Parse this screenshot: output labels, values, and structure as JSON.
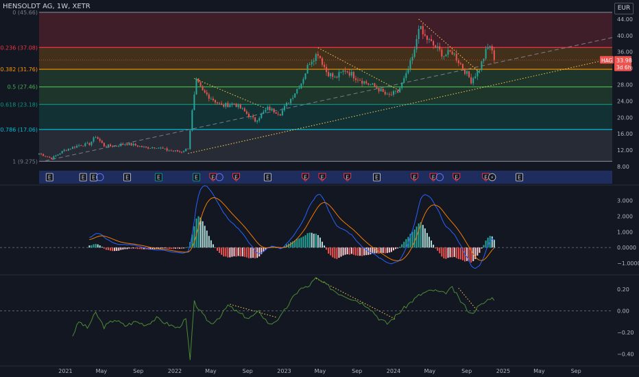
{
  "chart_title": "HENSOLDT AG, 1W, XETR",
  "currency": "EUR",
  "price_tag": {
    "symbol": "HAG",
    "price": "33.98",
    "time": "3d 6h",
    "value": 33.98
  },
  "colors": {
    "bg": "#131722",
    "up": "#26a69a",
    "down": "#ef5350",
    "grid": "#2a2e39",
    "text": "#b2b5be",
    "macd": "#2962ff",
    "signal": "#f57c00",
    "osc": "#4c8c34",
    "trend": "#f5c24a",
    "dashed": "#787b86",
    "hist_up_strong": "#26a69a",
    "hist_up_weak": "#b2dfdb",
    "hist_down_strong": "#ef5350",
    "hist_down_weak": "#ffcdd2",
    "event_bar": "#1f2c5e"
  },
  "chart_data": [
    {
      "id": "price",
      "type": "candlestick",
      "ylim": [
        7.5,
        45.66
      ],
      "y_ticks": [
        "44.00",
        "40.00",
        "36.00",
        "32.00",
        "28.00",
        "24.00",
        "20.00",
        "16.00",
        "12.00",
        "8.00"
      ],
      "fib_levels": [
        {
          "label": "0 (45.66)",
          "value": 45.66,
          "color": "#787b86"
        },
        {
          "label": "0.236 (37.08)",
          "value": 37.08,
          "color": "#f23645"
        },
        {
          "label": "0.382 (31.76)",
          "value": 31.76,
          "color": "#ff9800"
        },
        {
          "label": "0.5 (27.46)",
          "value": 27.46,
          "color": "#4caf50"
        },
        {
          "label": "0.618 (23.18)",
          "value": 23.18,
          "color": "#089981"
        },
        {
          "label": "0.786 (17.06)",
          "value": 17.06,
          "color": "#00bcd4"
        },
        {
          "label": "1 (9.275)",
          "value": 9.275,
          "color": "#787b86"
        }
      ],
      "fib_zones": [
        {
          "from": 45.66,
          "to": 37.08,
          "color": "#f23645"
        },
        {
          "from": 37.08,
          "to": 31.76,
          "color": "#ff9800"
        },
        {
          "from": 31.76,
          "to": 27.46,
          "color": "#4caf50"
        },
        {
          "from": 27.46,
          "to": 23.18,
          "color": "#4caf50"
        },
        {
          "from": 23.18,
          "to": 17.06,
          "color": "#089981"
        },
        {
          "from": 17.06,
          "to": 9.275,
          "color": "#787b86"
        }
      ],
      "x_labels": [
        "2021",
        "May",
        "Sep",
        "2022",
        "May",
        "Sep",
        "2023",
        "May",
        "Sep",
        "2024",
        "May",
        "Sep",
        "2025",
        "May",
        "Sep"
      ],
      "close_knots": [
        [
          "2020-10-05",
          11.2
        ],
        [
          "2020-11-16",
          10.0
        ],
        [
          "2020-12-28",
          12.0
        ],
        [
          "2021-02-15",
          13.2
        ],
        [
          "2021-03-22",
          13.5
        ],
        [
          "2021-04-12",
          15.4
        ],
        [
          "2021-05-10",
          13.1
        ],
        [
          "2021-06-14",
          13.0
        ],
        [
          "2021-07-19",
          13.6
        ],
        [
          "2021-08-23",
          13.2
        ],
        [
          "2021-09-27",
          12.6
        ],
        [
          "2021-11-01",
          12.8
        ],
        [
          "2021-12-06",
          12.0
        ],
        [
          "2022-01-24",
          11.6
        ],
        [
          "2022-02-14",
          12.5
        ],
        [
          "2022-02-28",
          21.5
        ],
        [
          "2022-03-14",
          28.8
        ],
        [
          "2022-04-04",
          26.3
        ],
        [
          "2022-05-02",
          24.8
        ],
        [
          "2022-06-06",
          22.8
        ],
        [
          "2022-07-18",
          23.4
        ],
        [
          "2022-08-15",
          21.8
        ],
        [
          "2022-09-26",
          19.2
        ],
        [
          "2022-11-07",
          22.2
        ],
        [
          "2022-12-19",
          21.0
        ],
        [
          "2023-01-23",
          24.6
        ],
        [
          "2023-02-27",
          28.5
        ],
        [
          "2023-03-27",
          33.6
        ],
        [
          "2023-04-24",
          35.8
        ],
        [
          "2023-05-22",
          31.2
        ],
        [
          "2023-06-19",
          29.6
        ],
        [
          "2023-07-24",
          31.6
        ],
        [
          "2023-08-28",
          29.8
        ],
        [
          "2023-10-02",
          28.4
        ],
        [
          "2023-11-06",
          27.3
        ],
        [
          "2023-12-11",
          25.2
        ],
        [
          "2024-01-15",
          26.2
        ],
        [
          "2024-02-12",
          30.2
        ],
        [
          "2024-03-11",
          36.0
        ],
        [
          "2024-03-25",
          42.5
        ],
        [
          "2024-04-08",
          40.2
        ],
        [
          "2024-05-13",
          37.6
        ],
        [
          "2024-06-17",
          35.2
        ],
        [
          "2024-07-15",
          36.0
        ],
        [
          "2024-08-12",
          33.0
        ],
        [
          "2024-09-16",
          29.0
        ],
        [
          "2024-10-14",
          32.0
        ],
        [
          "2024-11-04",
          36.0
        ],
        [
          "2024-11-18",
          37.6
        ],
        [
          "2024-12-02",
          33.98
        ]
      ]
    },
    {
      "id": "macd",
      "type": "macd",
      "ylim": [
        -1.7,
        3.9
      ],
      "y_ticks": [
        "3.000",
        "2.000",
        "1.000",
        "0.0000",
        "−1.0000"
      ],
      "y_tick_values": [
        3,
        2,
        1,
        0,
        -1
      ]
    },
    {
      "id": "oscillator",
      "type": "line",
      "ylim": [
        -0.5,
        0.32
      ],
      "y_ticks": [
        "0.20",
        "0.00",
        "−0.20",
        "−0.40"
      ],
      "y_tick_values": [
        0.2,
        0,
        -0.2,
        -0.4
      ],
      "knots": [
        [
          "2021-01-25",
          -0.23
        ],
        [
          "2021-02-15",
          -0.1
        ],
        [
          "2021-03-15",
          -0.16
        ],
        [
          "2021-04-12",
          -0.02
        ],
        [
          "2021-05-10",
          -0.15
        ],
        [
          "2021-06-14",
          -0.08
        ],
        [
          "2021-07-19",
          -0.14
        ],
        [
          "2021-08-23",
          -0.1
        ],
        [
          "2021-09-27",
          -0.13
        ],
        [
          "2021-11-01",
          -0.07
        ],
        [
          "2021-12-06",
          -0.12
        ],
        [
          "2022-01-10",
          -0.16
        ],
        [
          "2022-02-07",
          -0.08
        ],
        [
          "2022-02-21",
          -0.46
        ],
        [
          "2022-03-07",
          0.08
        ],
        [
          "2022-04-04",
          -0.04
        ],
        [
          "2022-05-02",
          -0.12
        ],
        [
          "2022-06-06",
          -0.04
        ],
        [
          "2022-06-27",
          0.05
        ],
        [
          "2022-08-01",
          -0.02
        ],
        [
          "2022-09-05",
          -0.07
        ],
        [
          "2022-10-10",
          -0.01
        ],
        [
          "2022-11-14",
          -0.13
        ],
        [
          "2022-12-19",
          -0.06
        ],
        [
          "2023-01-23",
          0.09
        ],
        [
          "2023-02-20",
          0.2
        ],
        [
          "2023-03-20",
          0.22
        ],
        [
          "2023-04-17",
          0.3
        ],
        [
          "2023-05-22",
          0.24
        ],
        [
          "2023-06-26",
          0.17
        ],
        [
          "2023-07-31",
          0.13
        ],
        [
          "2023-09-04",
          0.09
        ],
        [
          "2023-10-09",
          0.04
        ],
        [
          "2023-11-13",
          -0.07
        ],
        [
          "2023-12-11",
          -0.12
        ],
        [
          "2024-01-15",
          -0.03
        ],
        [
          "2024-02-19",
          0.06
        ],
        [
          "2024-03-25",
          0.14
        ],
        [
          "2024-04-15",
          0.17
        ],
        [
          "2024-05-13",
          0.19
        ],
        [
          "2024-06-17",
          0.16
        ],
        [
          "2024-07-15",
          0.21
        ],
        [
          "2024-08-12",
          0.09
        ],
        [
          "2024-09-16",
          -0.03
        ],
        [
          "2024-10-07",
          0.03
        ],
        [
          "2024-10-28",
          0.07
        ],
        [
          "2024-11-18",
          0.12
        ],
        [
          "2024-12-02",
          0.11
        ]
      ]
    }
  ],
  "trend_lines": [
    {
      "pane": "price",
      "style": "dashed",
      "from": [
        "2020-10-26",
        9.4
      ],
      "to": [
        "2025-12-31",
        39.5
      ]
    },
    {
      "pane": "price",
      "style": "dotted",
      "from": [
        "2022-02-14",
        11.2
      ],
      "to": [
        "2025-12-31",
        34.4
      ]
    },
    {
      "pane": "price",
      "style": "dotted",
      "from": [
        "2022-03-07",
        29.5
      ],
      "to": [
        "2022-11-07",
        22.0
      ]
    },
    {
      "pane": "price",
      "style": "dotted",
      "from": [
        "2023-04-24",
        37.0
      ],
      "to": [
        "2024-01-22",
        26.5
      ]
    },
    {
      "pane": "price",
      "style": "dotted",
      "from": [
        "2024-03-25",
        44.0
      ],
      "to": [
        "2024-10-14",
        31.0
      ]
    },
    {
      "pane": "oscillator",
      "style": "dotted",
      "from": [
        "2022-07-04",
        0.06
      ],
      "to": [
        "2022-12-05",
        -0.06
      ]
    },
    {
      "pane": "oscillator",
      "style": "dotted",
      "from": [
        "2023-04-17",
        0.3
      ],
      "to": [
        "2024-01-08",
        -0.08
      ]
    },
    {
      "pane": "oscillator",
      "style": "dotted",
      "from": [
        "2024-08-05",
        0.21
      ],
      "to": [
        "2024-10-07",
        0.0
      ]
    }
  ],
  "events": [
    {
      "date": "2020-11-09",
      "letter": "E",
      "kind": "earnings"
    },
    {
      "date": "2021-03-01",
      "letter": "E",
      "kind": "earnings"
    },
    {
      "date": "2021-04-05",
      "letter": "E",
      "kind": "earnings"
    },
    {
      "date": "2021-04-26",
      "letter": "",
      "kind": "other"
    },
    {
      "date": "2021-07-26",
      "letter": "E",
      "kind": "earnings"
    },
    {
      "date": "2021-11-08",
      "letter": "E",
      "kind": "dividend"
    },
    {
      "date": "2022-03-14",
      "letter": "E",
      "kind": "dividend"
    },
    {
      "date": "2022-05-09",
      "letter": "E",
      "kind": "earnings_miss"
    },
    {
      "date": "2022-05-30",
      "letter": "",
      "kind": "other"
    },
    {
      "date": "2022-07-25",
      "letter": "E",
      "kind": "earnings_miss"
    },
    {
      "date": "2022-11-07",
      "letter": "E",
      "kind": "earnings"
    },
    {
      "date": "2023-03-13",
      "letter": "E",
      "kind": "earnings_miss"
    },
    {
      "date": "2023-05-08",
      "letter": "E",
      "kind": "earnings_miss"
    },
    {
      "date": "2023-07-31",
      "letter": "E",
      "kind": "earnings_miss"
    },
    {
      "date": "2023-11-06",
      "letter": "E",
      "kind": "earnings"
    },
    {
      "date": "2024-03-11",
      "letter": "E",
      "kind": "earnings_miss"
    },
    {
      "date": "2024-05-13",
      "letter": "E",
      "kind": "earnings_miss"
    },
    {
      "date": "2024-06-03",
      "letter": "",
      "kind": "other"
    },
    {
      "date": "2024-07-29",
      "letter": "E",
      "kind": "earnings_miss"
    },
    {
      "date": "2024-11-04",
      "letter": "E",
      "kind": "earnings_miss"
    },
    {
      "date": "2024-11-25",
      "letter": "⚡",
      "kind": "flash"
    },
    {
      "date": "2025-02-24",
      "letter": "E",
      "kind": "earnings"
    }
  ]
}
